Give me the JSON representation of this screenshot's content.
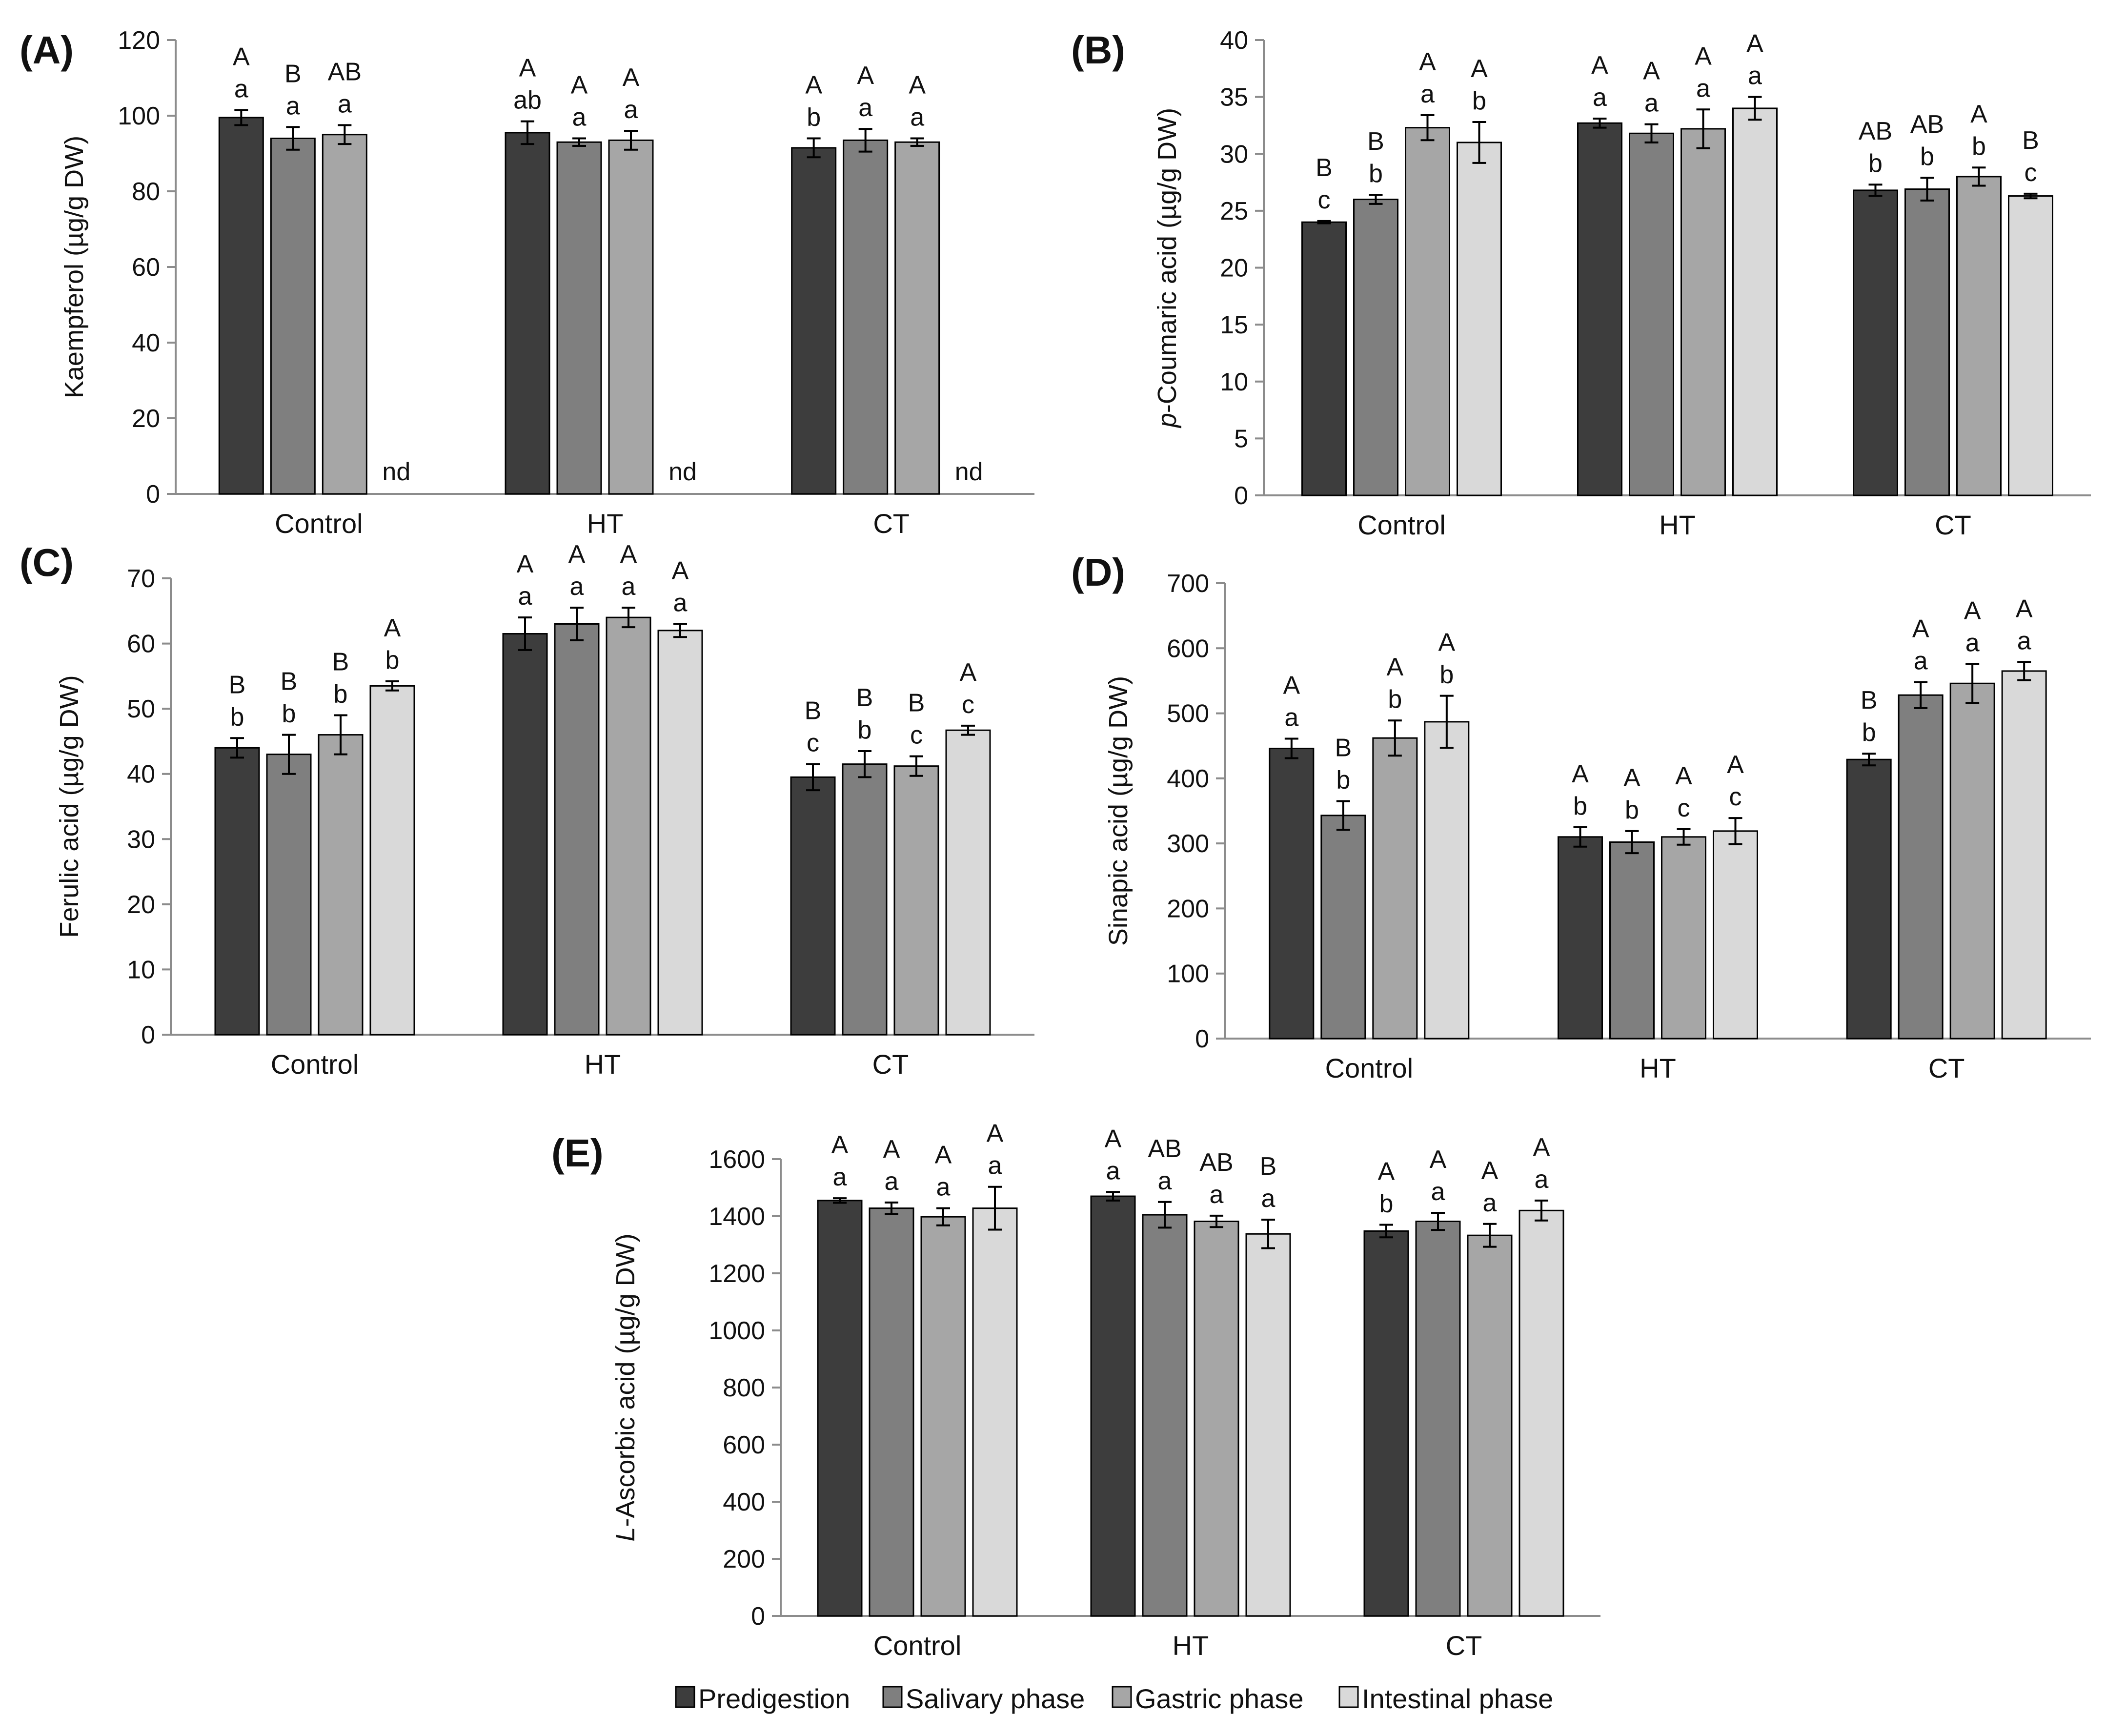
{
  "colors": {
    "Predigestion": "#3d3d3d",
    "Salivary phase": "#7f7f7f",
    "Gastric phase": "#a6a6a6",
    "Intestinal phase": "#d9d9d9",
    "axis": "#8c8c8c",
    "bar_stroke": "#000000"
  },
  "legend": {
    "entries": [
      "Predigestion",
      "Salivary phase",
      "Gastric phase",
      "Intestinal phase"
    ]
  },
  "chart_data": [
    {
      "type": "bar",
      "panel": "(A)",
      "ylabel": "Kaempferol (µg/g DW)",
      "ylim": [
        0,
        120
      ],
      "ytick_step": 20,
      "categories": [
        "Control",
        "HT",
        "CT"
      ],
      "series": [
        {
          "name": "Predigestion",
          "values": [
            99.5,
            95.5,
            91.5
          ],
          "errors": [
            2,
            3,
            2.5
          ],
          "upper": [
            "A",
            "A",
            "A"
          ],
          "lower": [
            "a",
            "ab",
            "b"
          ]
        },
        {
          "name": "Salivary phase",
          "values": [
            94,
            93,
            93.5
          ],
          "errors": [
            3,
            1,
            3
          ],
          "upper": [
            "B",
            "A",
            "A"
          ],
          "lower": [
            "a",
            "a",
            "a"
          ]
        },
        {
          "name": "Gastric phase",
          "values": [
            95,
            93.5,
            93
          ],
          "errors": [
            2.5,
            2.5,
            1
          ],
          "upper": [
            "AB",
            "A",
            "A"
          ],
          "lower": [
            "a",
            "a",
            "a"
          ]
        },
        {
          "name": "Intestinal phase",
          "values": [
            null,
            null,
            null
          ],
          "errors": [
            null,
            null,
            null
          ],
          "upper": [
            "",
            "",
            ""
          ],
          "lower": [
            "",
            "",
            ""
          ],
          "missing_label": "nd"
        }
      ]
    },
    {
      "type": "bar",
      "panel": "(B)",
      "ylabel": "p-Coumaric acid (µg/g DW)",
      "ylim": [
        0,
        40
      ],
      "ytick_step": 5,
      "categories": [
        "Control",
        "HT",
        "CT"
      ],
      "series": [
        {
          "name": "Predigestion",
          "values": [
            24,
            32.7,
            26.8
          ],
          "errors": [
            0.1,
            0.4,
            0.5
          ],
          "upper": [
            "B",
            "A",
            "AB"
          ],
          "lower": [
            "c",
            "a",
            "b"
          ]
        },
        {
          "name": "Salivary phase",
          "values": [
            26,
            31.8,
            26.9
          ],
          "errors": [
            0.4,
            0.8,
            1
          ],
          "upper": [
            "B",
            "A",
            "AB"
          ],
          "lower": [
            "b",
            "a",
            "b"
          ]
        },
        {
          "name": "Gastric phase",
          "values": [
            32.3,
            32.2,
            28
          ],
          "errors": [
            1.1,
            1.7,
            0.8
          ],
          "upper": [
            "A",
            "A",
            "A"
          ],
          "lower": [
            "a",
            "a",
            "b"
          ]
        },
        {
          "name": "Intestinal phase",
          "values": [
            31,
            34,
            26.3
          ],
          "errors": [
            1.8,
            1,
            0.2
          ],
          "upper": [
            "A",
            "A",
            "B"
          ],
          "lower": [
            "b",
            "a",
            "c"
          ]
        }
      ]
    },
    {
      "type": "bar",
      "panel": "(C)",
      "ylabel": "Ferulic acid (µg/g DW)",
      "ylim": [
        0,
        70
      ],
      "ytick_step": 10,
      "categories": [
        "Control",
        "HT",
        "CT"
      ],
      "series": [
        {
          "name": "Predigestion",
          "values": [
            44,
            61.5,
            39.5
          ],
          "errors": [
            1.5,
            2.5,
            2
          ],
          "upper": [
            "B",
            "A",
            "B"
          ],
          "lower": [
            "b",
            "a",
            "c"
          ]
        },
        {
          "name": "Salivary phase",
          "values": [
            43,
            63,
            41.5
          ],
          "errors": [
            3,
            2.5,
            2
          ],
          "upper": [
            "B",
            "A",
            "B"
          ],
          "lower": [
            "b",
            "a",
            "b"
          ]
        },
        {
          "name": "Gastric phase",
          "values": [
            46,
            64,
            41.2
          ],
          "errors": [
            3,
            1.5,
            1.5
          ],
          "upper": [
            "B",
            "A",
            "B"
          ],
          "lower": [
            "b",
            "a",
            "c"
          ]
        },
        {
          "name": "Intestinal phase",
          "values": [
            53.5,
            62,
            46.7
          ],
          "errors": [
            0.7,
            1,
            0.7
          ],
          "upper": [
            "A",
            "A",
            "A"
          ],
          "lower": [
            "b",
            "a",
            "c"
          ]
        }
      ]
    },
    {
      "type": "bar",
      "panel": "(D)",
      "ylabel": "Sinapic acid (µg/g DW)",
      "ylim": [
        0,
        700
      ],
      "ytick_step": 100,
      "categories": [
        "Control",
        "HT",
        "CT"
      ],
      "series": [
        {
          "name": "Predigestion",
          "values": [
            446,
            310,
            429
          ],
          "errors": [
            15,
            15,
            9
          ],
          "upper": [
            "A",
            "A",
            "B"
          ],
          "lower": [
            "a",
            "b",
            "b"
          ]
        },
        {
          "name": "Salivary phase",
          "values": [
            343,
            302,
            528
          ],
          "errors": [
            22,
            17,
            20
          ],
          "upper": [
            "B",
            "A",
            "A"
          ],
          "lower": [
            "b",
            "b",
            "a"
          ]
        },
        {
          "name": "Gastric phase",
          "values": [
            462,
            310,
            546
          ],
          "errors": [
            27,
            12,
            30
          ],
          "upper": [
            "A",
            "A",
            "A"
          ],
          "lower": [
            "b",
            "c",
            "a"
          ]
        },
        {
          "name": "Intestinal phase",
          "values": [
            487,
            319,
            565
          ],
          "errors": [
            40,
            20,
            14
          ],
          "upper": [
            "A",
            "A",
            "A"
          ],
          "lower": [
            "b",
            "c",
            "a"
          ]
        }
      ]
    },
    {
      "type": "bar",
      "panel": "(E)",
      "ylabel": "L-Ascorbic acid (µg/g DW)",
      "ylim": [
        0,
        1600
      ],
      "ytick_step": 200,
      "categories": [
        "Control",
        "HT",
        "CT"
      ],
      "series": [
        {
          "name": "Predigestion",
          "values": [
            1455,
            1470,
            1348
          ],
          "errors": [
            8,
            15,
            22
          ],
          "upper": [
            "A",
            "A",
            "A"
          ],
          "lower": [
            "a",
            "a",
            "b"
          ]
        },
        {
          "name": "Salivary phase",
          "values": [
            1428,
            1405,
            1382
          ],
          "errors": [
            20,
            45,
            30
          ],
          "upper": [
            "A",
            "AB",
            "A"
          ],
          "lower": [
            "a",
            "a",
            "a"
          ]
        },
        {
          "name": "Gastric phase",
          "values": [
            1398,
            1382,
            1333
          ],
          "errors": [
            30,
            20,
            40
          ],
          "upper": [
            "A",
            "AB",
            "A"
          ],
          "lower": [
            "a",
            "a",
            "a"
          ]
        },
        {
          "name": "Intestinal phase",
          "values": [
            1428,
            1338,
            1420
          ],
          "errors": [
            75,
            50,
            35
          ],
          "upper": [
            "A",
            "B",
            "A"
          ],
          "lower": [
            "a",
            "a",
            "a"
          ]
        }
      ]
    }
  ]
}
